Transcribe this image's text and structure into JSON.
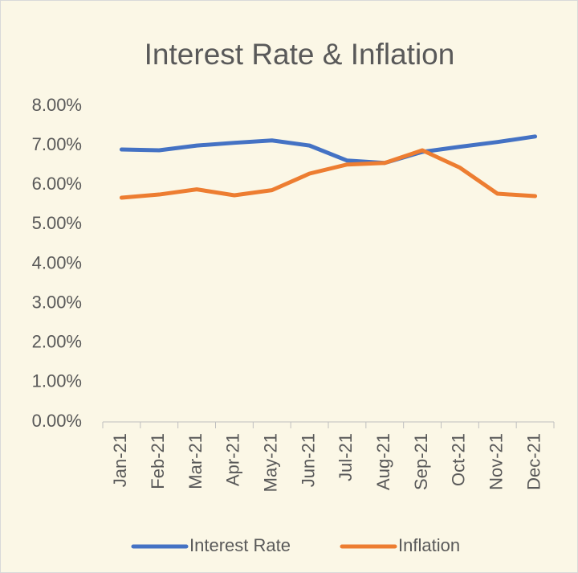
{
  "chart_data": {
    "type": "line",
    "title": "Interest Rate & Inflation",
    "categories": [
      "Jan-21",
      "Feb-21",
      "Mar-21",
      "Apr-21",
      "May-21",
      "Jun-21",
      "Jul-21",
      "Aug-21",
      "Sep-21",
      "Oct-21",
      "Nov-21",
      "Dec-21"
    ],
    "series": [
      {
        "name": "Interest Rate",
        "color": "#4472c4",
        "values": [
          6.9,
          6.88,
          7.0,
          7.07,
          7.13,
          7.0,
          6.62,
          6.56,
          6.84,
          6.97,
          7.09,
          7.23
        ]
      },
      {
        "name": "Inflation",
        "color": "#ed7d31",
        "values": [
          5.68,
          5.76,
          5.89,
          5.74,
          5.87,
          6.29,
          6.52,
          6.56,
          6.88,
          6.44,
          5.78,
          5.72
        ]
      }
    ],
    "ylim": [
      0,
      8
    ],
    "yticks": [
      {
        "value": 0,
        "label": "0.00%"
      },
      {
        "value": 1,
        "label": "1.00%"
      },
      {
        "value": 2,
        "label": "2.00%"
      },
      {
        "value": 3,
        "label": "3.00%"
      },
      {
        "value": 4,
        "label": "4.00%"
      },
      {
        "value": 5,
        "label": "5.00%"
      },
      {
        "value": 6,
        "label": "6.00%"
      },
      {
        "value": 7,
        "label": "7.00%"
      },
      {
        "value": 8,
        "label": "8.00%"
      }
    ],
    "grid": false,
    "legend": "bottom"
  }
}
